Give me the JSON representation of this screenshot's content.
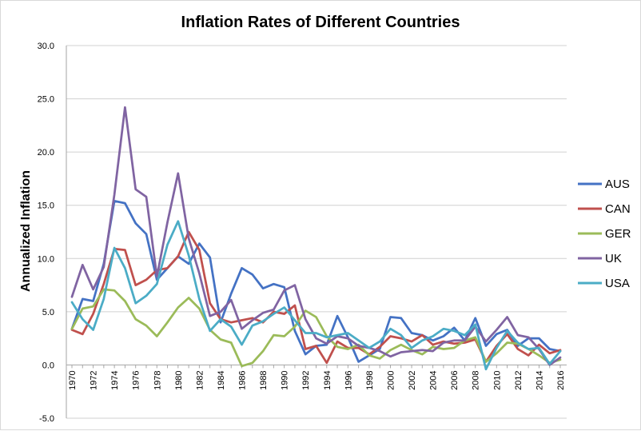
{
  "chart_data": {
    "type": "line",
    "title": "Inflation Rates of Different Countries",
    "xlabel": "",
    "ylabel": "Annualized Inflation",
    "ylim": [
      -5.0,
      30.0
    ],
    "y_ticks": [
      "30.0",
      "25.0",
      "20.0",
      "15.0",
      "10.0",
      "5.0",
      "0.0",
      "-5.0"
    ],
    "y_tick_values": [
      30,
      25,
      20,
      15,
      10,
      5,
      0,
      -5
    ],
    "x_tick_labels": [
      "1970",
      "1972",
      "1974",
      "1976",
      "1978",
      "1980",
      "1982",
      "1984",
      "1986",
      "1988",
      "1990",
      "1992",
      "1994",
      "1996",
      "1998",
      "2000",
      "2002",
      "2004",
      "2006",
      "2008",
      "2010",
      "2012",
      "2014",
      "2016"
    ],
    "x": [
      1970,
      1971,
      1972,
      1973,
      1974,
      1975,
      1976,
      1977,
      1978,
      1979,
      1980,
      1981,
      1982,
      1983,
      1984,
      1985,
      1986,
      1987,
      1988,
      1989,
      1990,
      1991,
      1992,
      1993,
      1994,
      1995,
      1996,
      1997,
      1998,
      1999,
      2000,
      2001,
      2002,
      2003,
      2004,
      2005,
      2006,
      2007,
      2008,
      2009,
      2010,
      2011,
      2012,
      2013,
      2014,
      2015,
      2016
    ],
    "grid": true,
    "legend_position": "right",
    "series": [
      {
        "name": "AUS",
        "color": "#4472c4",
        "values": [
          3.4,
          6.2,
          6.0,
          9.5,
          15.4,
          15.2,
          13.3,
          12.3,
          8.0,
          9.1,
          10.2,
          9.5,
          11.4,
          10.1,
          4.0,
          6.7,
          9.1,
          8.5,
          7.2,
          7.6,
          7.3,
          3.2,
          1.0,
          1.8,
          1.9,
          4.6,
          2.6,
          0.3,
          0.9,
          1.5,
          4.5,
          4.4,
          3.0,
          2.8,
          2.3,
          2.7,
          3.5,
          2.3,
          4.4,
          1.8,
          2.9,
          3.3,
          1.8,
          2.5,
          2.5,
          1.5,
          1.3
        ]
      },
      {
        "name": "CAN",
        "color": "#c0504d",
        "values": [
          3.3,
          2.9,
          4.8,
          7.6,
          10.9,
          10.8,
          7.5,
          8.0,
          8.9,
          9.1,
          10.2,
          12.5,
          10.8,
          5.8,
          4.3,
          4.0,
          4.2,
          4.4,
          4.0,
          5.0,
          4.8,
          5.6,
          1.5,
          1.8,
          0.2,
          2.2,
          1.6,
          1.6,
          1.0,
          1.7,
          2.7,
          2.5,
          2.2,
          2.8,
          1.9,
          2.2,
          2.0,
          2.1,
          2.4,
          0.3,
          1.8,
          2.9,
          1.5,
          0.9,
          1.9,
          1.1,
          1.4
        ]
      },
      {
        "name": "GER",
        "color": "#9bbb59",
        "values": [
          3.4,
          5.3,
          5.5,
          7.1,
          7.0,
          6.0,
          4.3,
          3.7,
          2.7,
          4.0,
          5.4,
          6.3,
          5.3,
          3.3,
          2.4,
          2.1,
          -0.1,
          0.2,
          1.3,
          2.8,
          2.7,
          3.6,
          5.1,
          4.5,
          2.7,
          1.7,
          1.5,
          1.9,
          0.9,
          0.6,
          1.4,
          1.9,
          1.4,
          1.0,
          1.7,
          1.5,
          1.6,
          2.3,
          2.6,
          0.3,
          1.1,
          2.1,
          2.0,
          1.5,
          0.9,
          0.2,
          0.5
        ]
      },
      {
        "name": "UK",
        "color": "#8064a2",
        "values": [
          6.4,
          9.4,
          7.1,
          9.2,
          16.0,
          24.2,
          16.5,
          15.8,
          8.3,
          13.4,
          18.0,
          11.9,
          8.6,
          4.6,
          5.0,
          6.1,
          3.4,
          4.2,
          4.9,
          5.2,
          7.0,
          7.5,
          4.3,
          2.5,
          2.0,
          2.7,
          2.5,
          1.8,
          1.6,
          1.3,
          0.8,
          1.2,
          1.3,
          1.4,
          1.3,
          2.1,
          2.3,
          2.3,
          3.6,
          2.2,
          3.3,
          4.5,
          2.8,
          2.6,
          1.5,
          0.0,
          0.7
        ]
      },
      {
        "name": "USA",
        "color": "#4bacc6",
        "values": [
          5.9,
          4.3,
          3.3,
          6.2,
          11.0,
          9.1,
          5.8,
          6.5,
          7.6,
          11.3,
          13.5,
          10.3,
          6.2,
          3.2,
          4.3,
          3.6,
          1.9,
          3.7,
          4.1,
          4.8,
          5.4,
          4.2,
          3.0,
          3.0,
          2.6,
          2.8,
          3.0,
          2.3,
          1.6,
          2.2,
          3.4,
          2.8,
          1.6,
          2.3,
          2.7,
          3.4,
          3.2,
          2.8,
          3.8,
          -0.4,
          1.6,
          3.2,
          2.1,
          1.5,
          1.6,
          0.1,
          1.3
        ]
      }
    ]
  }
}
